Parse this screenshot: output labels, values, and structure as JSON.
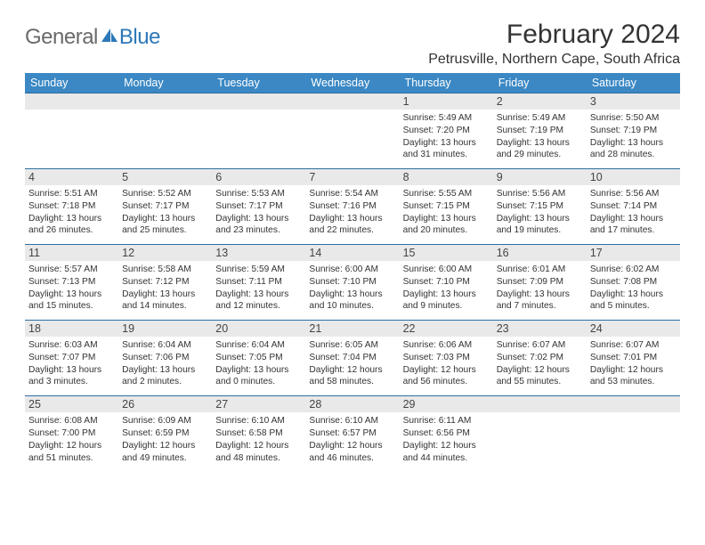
{
  "logo": {
    "general": "General",
    "blue": "Blue"
  },
  "header": {
    "title": "February 2024",
    "location": "Petrusville, Northern Cape, South Africa"
  },
  "colors": {
    "header_bg": "#3b88c4",
    "header_text": "#ffffff",
    "row_sep": "#2d6fa3",
    "daynum_bg": "#e9e9e9",
    "text": "#333333",
    "logo_gray": "#6a6a6a",
    "logo_blue": "#2d78b8"
  },
  "weekdays": [
    "Sunday",
    "Monday",
    "Tuesday",
    "Wednesday",
    "Thursday",
    "Friday",
    "Saturday"
  ],
  "weeks": [
    [
      null,
      null,
      null,
      null,
      {
        "d": "1",
        "sr": "5:49 AM",
        "ss": "7:20 PM",
        "dl": "13 hours and 31 minutes."
      },
      {
        "d": "2",
        "sr": "5:49 AM",
        "ss": "7:19 PM",
        "dl": "13 hours and 29 minutes."
      },
      {
        "d": "3",
        "sr": "5:50 AM",
        "ss": "7:19 PM",
        "dl": "13 hours and 28 minutes."
      }
    ],
    [
      {
        "d": "4",
        "sr": "5:51 AM",
        "ss": "7:18 PM",
        "dl": "13 hours and 26 minutes."
      },
      {
        "d": "5",
        "sr": "5:52 AM",
        "ss": "7:17 PM",
        "dl": "13 hours and 25 minutes."
      },
      {
        "d": "6",
        "sr": "5:53 AM",
        "ss": "7:17 PM",
        "dl": "13 hours and 23 minutes."
      },
      {
        "d": "7",
        "sr": "5:54 AM",
        "ss": "7:16 PM",
        "dl": "13 hours and 22 minutes."
      },
      {
        "d": "8",
        "sr": "5:55 AM",
        "ss": "7:15 PM",
        "dl": "13 hours and 20 minutes."
      },
      {
        "d": "9",
        "sr": "5:56 AM",
        "ss": "7:15 PM",
        "dl": "13 hours and 19 minutes."
      },
      {
        "d": "10",
        "sr": "5:56 AM",
        "ss": "7:14 PM",
        "dl": "13 hours and 17 minutes."
      }
    ],
    [
      {
        "d": "11",
        "sr": "5:57 AM",
        "ss": "7:13 PM",
        "dl": "13 hours and 15 minutes."
      },
      {
        "d": "12",
        "sr": "5:58 AM",
        "ss": "7:12 PM",
        "dl": "13 hours and 14 minutes."
      },
      {
        "d": "13",
        "sr": "5:59 AM",
        "ss": "7:11 PM",
        "dl": "13 hours and 12 minutes."
      },
      {
        "d": "14",
        "sr": "6:00 AM",
        "ss": "7:10 PM",
        "dl": "13 hours and 10 minutes."
      },
      {
        "d": "15",
        "sr": "6:00 AM",
        "ss": "7:10 PM",
        "dl": "13 hours and 9 minutes."
      },
      {
        "d": "16",
        "sr": "6:01 AM",
        "ss": "7:09 PM",
        "dl": "13 hours and 7 minutes."
      },
      {
        "d": "17",
        "sr": "6:02 AM",
        "ss": "7:08 PM",
        "dl": "13 hours and 5 minutes."
      }
    ],
    [
      {
        "d": "18",
        "sr": "6:03 AM",
        "ss": "7:07 PM",
        "dl": "13 hours and 3 minutes."
      },
      {
        "d": "19",
        "sr": "6:04 AM",
        "ss": "7:06 PM",
        "dl": "13 hours and 2 minutes."
      },
      {
        "d": "20",
        "sr": "6:04 AM",
        "ss": "7:05 PM",
        "dl": "13 hours and 0 minutes."
      },
      {
        "d": "21",
        "sr": "6:05 AM",
        "ss": "7:04 PM",
        "dl": "12 hours and 58 minutes."
      },
      {
        "d": "22",
        "sr": "6:06 AM",
        "ss": "7:03 PM",
        "dl": "12 hours and 56 minutes."
      },
      {
        "d": "23",
        "sr": "6:07 AM",
        "ss": "7:02 PM",
        "dl": "12 hours and 55 minutes."
      },
      {
        "d": "24",
        "sr": "6:07 AM",
        "ss": "7:01 PM",
        "dl": "12 hours and 53 minutes."
      }
    ],
    [
      {
        "d": "25",
        "sr": "6:08 AM",
        "ss": "7:00 PM",
        "dl": "12 hours and 51 minutes."
      },
      {
        "d": "26",
        "sr": "6:09 AM",
        "ss": "6:59 PM",
        "dl": "12 hours and 49 minutes."
      },
      {
        "d": "27",
        "sr": "6:10 AM",
        "ss": "6:58 PM",
        "dl": "12 hours and 48 minutes."
      },
      {
        "d": "28",
        "sr": "6:10 AM",
        "ss": "6:57 PM",
        "dl": "12 hours and 46 minutes."
      },
      {
        "d": "29",
        "sr": "6:11 AM",
        "ss": "6:56 PM",
        "dl": "12 hours and 44 minutes."
      },
      null,
      null
    ]
  ],
  "labels": {
    "sunrise": "Sunrise:",
    "sunset": "Sunset:",
    "daylight": "Daylight:"
  }
}
